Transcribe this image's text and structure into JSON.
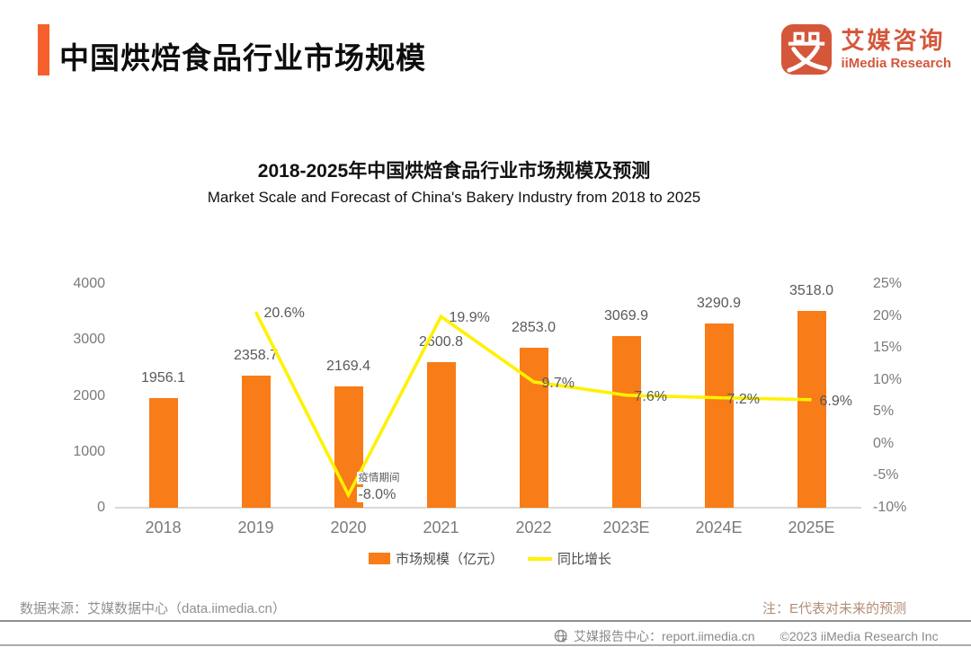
{
  "theme": {
    "accent": "#F5602C",
    "bar_orange": "#F87C17",
    "line_yellow": "#FFF100",
    "logo_orange": "#D4573A"
  },
  "header": {
    "title": "中国烘焙食品行业市场规模"
  },
  "logo": {
    "glyph": "艾",
    "cn": "艾媒咨询",
    "en": "iiMedia Research",
    "icon": "iimedia-logo-icon"
  },
  "chart_data": {
    "type": "bar",
    "title": "2018-2025年中国烘焙食品行业市场规模及预测",
    "subtitle": "Market Scale and Forecast of China's Bakery Industry from 2018 to 2025",
    "categories": [
      "2018",
      "2019",
      "2020",
      "2021",
      "2022",
      "2023E",
      "2024E",
      "2025E"
    ],
    "series": [
      {
        "name": "市场规模（亿元）",
        "type": "bar",
        "color": "#F87C17",
        "values": [
          1956.1,
          2358.7,
          2169.4,
          2600.8,
          2853.0,
          3069.9,
          3290.9,
          3518.0
        ],
        "labels": [
          "1956.1",
          "2358.7",
          "2169.4",
          "2600.8",
          "2853.0",
          "3069.9",
          "3290.9",
          "3518.0"
        ]
      },
      {
        "name": "同比增长",
        "type": "line",
        "color": "#FFF100",
        "values": [
          null,
          20.6,
          -8.0,
          19.9,
          9.7,
          7.6,
          7.2,
          6.9
        ],
        "labels": [
          "",
          "20.6%",
          "-8.0%",
          "19.9%",
          "9.7%",
          "7.6%",
          "7.2%",
          "6.9%"
        ]
      }
    ],
    "left_axis": {
      "label": "",
      "min": 0,
      "max": 4000,
      "ticks": [
        "4000",
        "3000",
        "2000",
        "1000",
        "0"
      ]
    },
    "right_axis": {
      "label": "",
      "min": -10,
      "max": 25,
      "ticks": [
        "25%",
        "20%",
        "15%",
        "10%",
        "5%",
        "0%",
        "-5%",
        "-10%"
      ]
    },
    "annotation": {
      "index": 2,
      "text": "疫情期间"
    },
    "legend_position": "bottom",
    "grid": "off"
  },
  "footer": {
    "source": "数据来源：艾媒数据中心（data.iimedia.cn）",
    "note": "注：E代表对未来的预测"
  },
  "bottom_bar": {
    "icon": "globe-icon",
    "report_center": "艾媒报告中心：report.iimedia.cn",
    "copyright": "©2023 iiMedia Research  Inc"
  }
}
